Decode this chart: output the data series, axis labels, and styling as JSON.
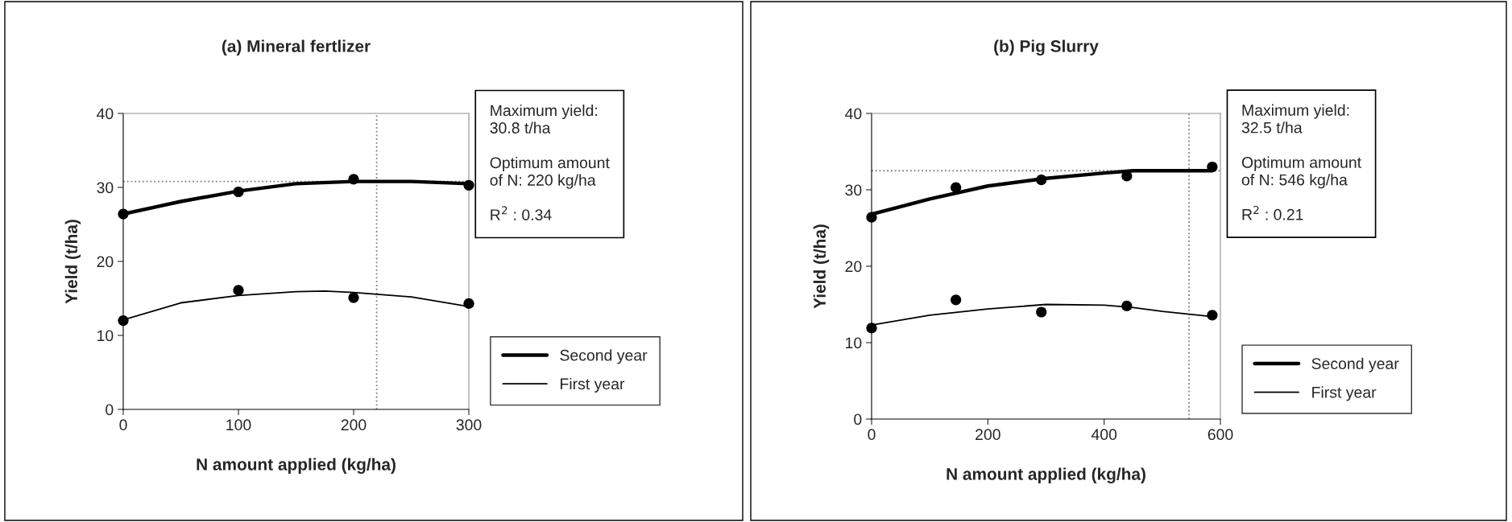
{
  "chart_data": [
    {
      "type": "line",
      "title": "(a) Mineral fertlizer",
      "xlabel": "N amount applied (kg/ha)",
      "ylabel": "Yield (t/ha)",
      "xlim": [
        0,
        300
      ],
      "xticks": [
        0,
        100,
        200,
        300
      ],
      "ylim": [
        0,
        40
      ],
      "yticks": [
        0,
        10,
        20,
        30,
        40
      ],
      "grid": false,
      "legend": "right",
      "series": [
        {
          "type": "scatter",
          "marker": "circle",
          "color": "#000000",
          "x": [
            0,
            100,
            200,
            300
          ],
          "values": [
            26.4,
            29.4,
            31.1,
            30.3
          ]
        },
        {
          "type": "scatter",
          "marker": "circle",
          "color": "#000000",
          "x": [
            0,
            100,
            200,
            300
          ],
          "values": [
            12.0,
            16.1,
            15.1,
            14.3
          ]
        },
        {
          "marker": "none",
          "name": "Second year",
          "color": "#000000",
          "x": [
            0,
            50,
            100,
            150,
            200,
            250,
            300
          ],
          "values": [
            26.4,
            28.1,
            29.5,
            30.5,
            30.8,
            30.8,
            30.5
          ]
        },
        {
          "marker": "none",
          "name": "First year",
          "color": "#000000",
          "x": [
            0,
            50,
            100,
            150,
            175,
            200,
            250,
            300
          ],
          "values": [
            12.1,
            14.4,
            15.4,
            15.9,
            16.0,
            15.8,
            15.2,
            13.9
          ]
        }
      ],
      "ref_lines": [
        {
          "axis": "y",
          "value": 30.8,
          "color": "#808080",
          "line_style": "dotted"
        },
        {
          "axis": "x",
          "value": 220,
          "color": "#808080",
          "line_style": "dotted"
        }
      ],
      "annotations": [
        "Maximum yield:\n30.8 t/ha",
        "Optimum amount\nof N: 220 kg/ha",
        "R$^{2}$ : 0.34"
      ]
    },
    {
      "type": "line",
      "title": "(b) Pig Slurry",
      "xlabel": "N amount applied (kg/ha)",
      "ylabel": "Yield (t/ha)",
      "xlim": [
        0,
        600
      ],
      "xticks": [
        0,
        200,
        400,
        600
      ],
      "ylim": [
        0,
        40
      ],
      "yticks": [
        0,
        10,
        20,
        30,
        40
      ],
      "grid": false,
      "legend": "right",
      "series": [
        {
          "type": "scatter",
          "marker": "circle",
          "color": "#000000",
          "x": [
            0,
            145,
            292,
            439,
            586
          ],
          "values": [
            26.4,
            30.3,
            31.3,
            31.8,
            33.0
          ]
        },
        {
          "type": "scatter",
          "marker": "circle",
          "color": "#000000",
          "x": [
            0,
            145,
            292,
            439,
            586
          ],
          "values": [
            11.9,
            15.6,
            14.0,
            14.8,
            13.6
          ]
        },
        {
          "marker": "none",
          "name": "Second year",
          "color": "#000000",
          "x": [
            0,
            100,
            200,
            300,
            400,
            450,
            586
          ],
          "values": [
            26.8,
            28.8,
            30.5,
            31.5,
            32.2,
            32.5,
            32.5
          ]
        },
        {
          "marker": "none",
          "name": "First year",
          "color": "#000000",
          "x": [
            0,
            100,
            200,
            300,
            400,
            450,
            500,
            586
          ],
          "values": [
            12.3,
            13.6,
            14.4,
            15.0,
            14.9,
            14.6,
            14.1,
            13.4
          ]
        }
      ],
      "ref_lines": [
        {
          "axis": "y",
          "value": 32.5,
          "color": "#808080",
          "line_style": "dotted"
        },
        {
          "axis": "x",
          "value": 546,
          "color": "#808080",
          "line_style": "dotted"
        }
      ],
      "annotations": [
        "Maximum yield:\n32.5 t/ha",
        "Optimum amount\nof N: 546 kg/ha",
        "R$^{2}$ : 0.21"
      ]
    }
  ]
}
